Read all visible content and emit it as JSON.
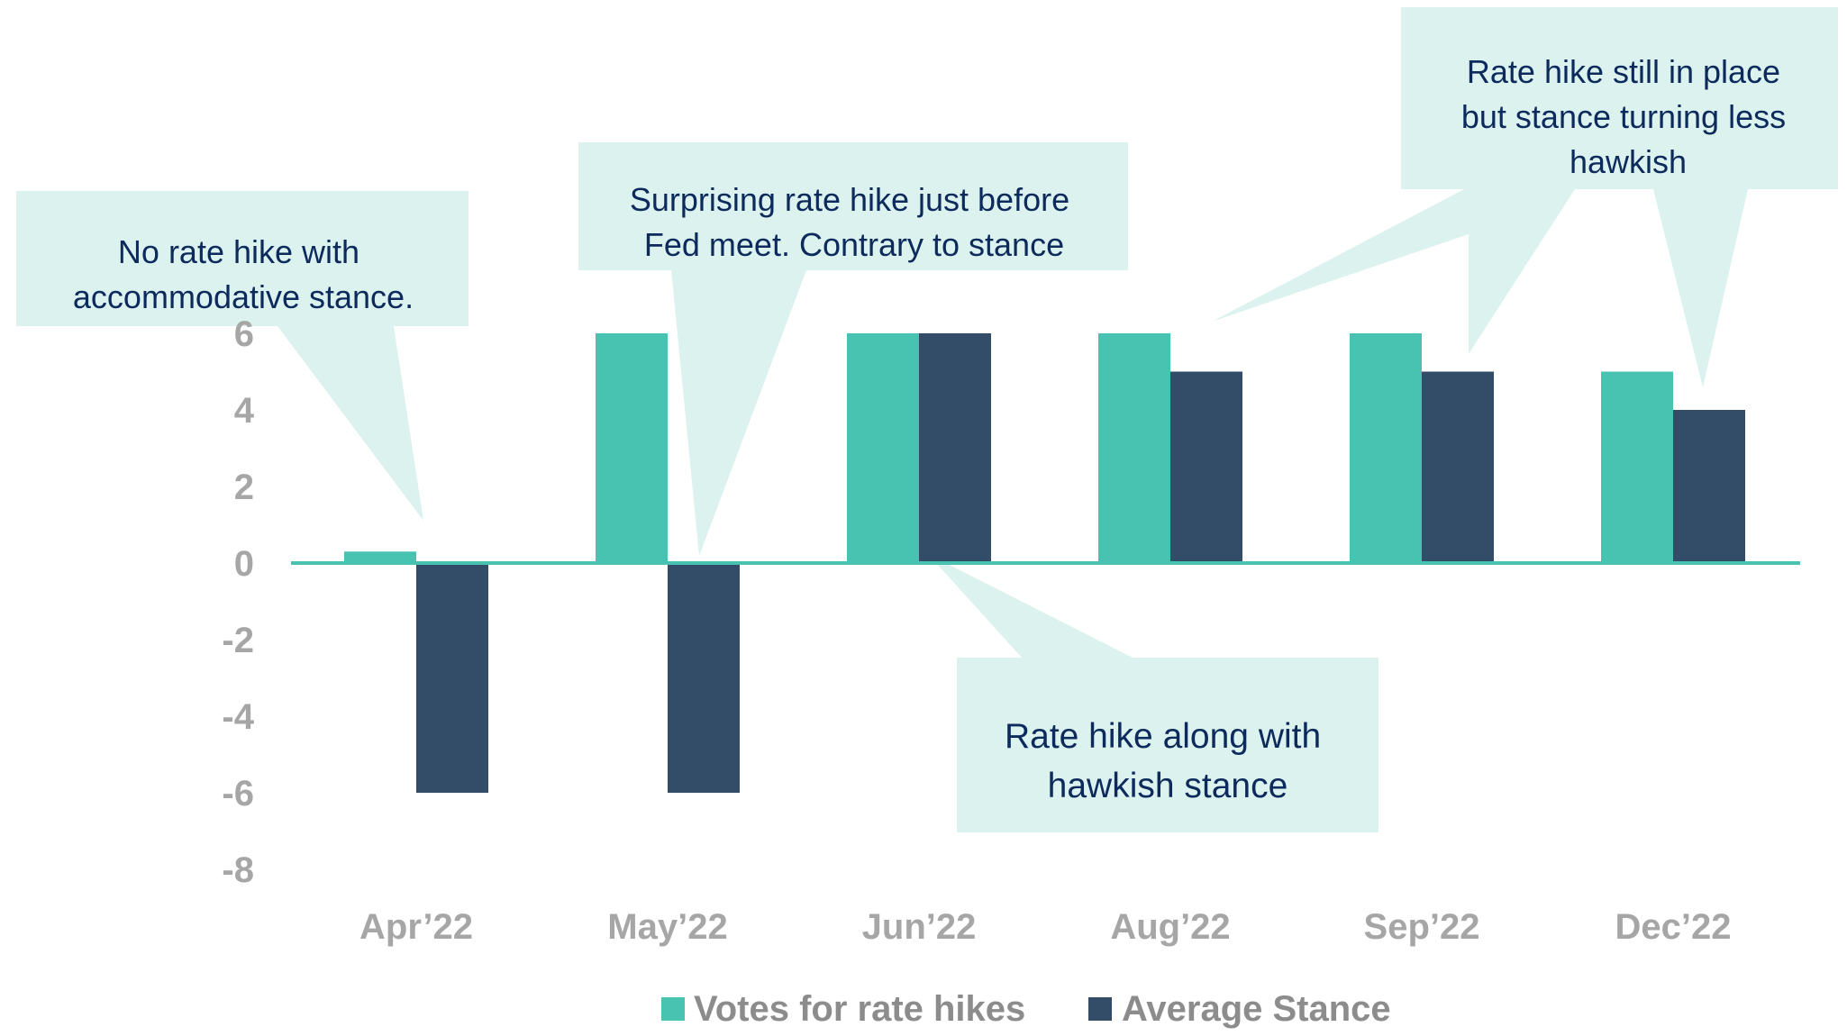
{
  "chart_data": {
    "type": "bar",
    "categories": [
      "Apr’22",
      "May’22",
      "Jun’22",
      "Aug’22",
      "Sep’22",
      "Dec’22"
    ],
    "series": [
      {
        "name": "Votes for rate hikes",
        "values": [
          0.3,
          6,
          6,
          6,
          6,
          5
        ],
        "color": "#49c3b1"
      },
      {
        "name": "Average Stance",
        "values": [
          -6,
          -6,
          6,
          5,
          5,
          4
        ],
        "color": "#334d68"
      }
    ],
    "ylim": [
      -8,
      6
    ],
    "yticks": [
      6,
      4,
      2,
      0,
      -2,
      -4,
      -6,
      -8
    ],
    "grid": false,
    "legend_position": "bottom",
    "annotations": [
      {
        "lines": [
          "No rate hike with",
          "accommodative stance."
        ],
        "category": "Apr’22"
      },
      {
        "lines": [
          "Surprising rate hike just before",
          "Fed meet. Contrary to stance"
        ],
        "category": "May’22"
      },
      {
        "lines": [
          "Rate hike along with",
          "hawkish stance"
        ],
        "category": "Jun’22"
      },
      {
        "lines": [
          "Rate hike still in place",
          "but stance turning less",
          "hawkish"
        ],
        "category": "Aug’22, Sep’22, Dec’22"
      }
    ]
  },
  "colors": {
    "axis": "#49c3b1",
    "tick_text": "#a6a6a6",
    "callout_fill": "#dcf2ee",
    "callout_text": "#0d2a5c"
  }
}
